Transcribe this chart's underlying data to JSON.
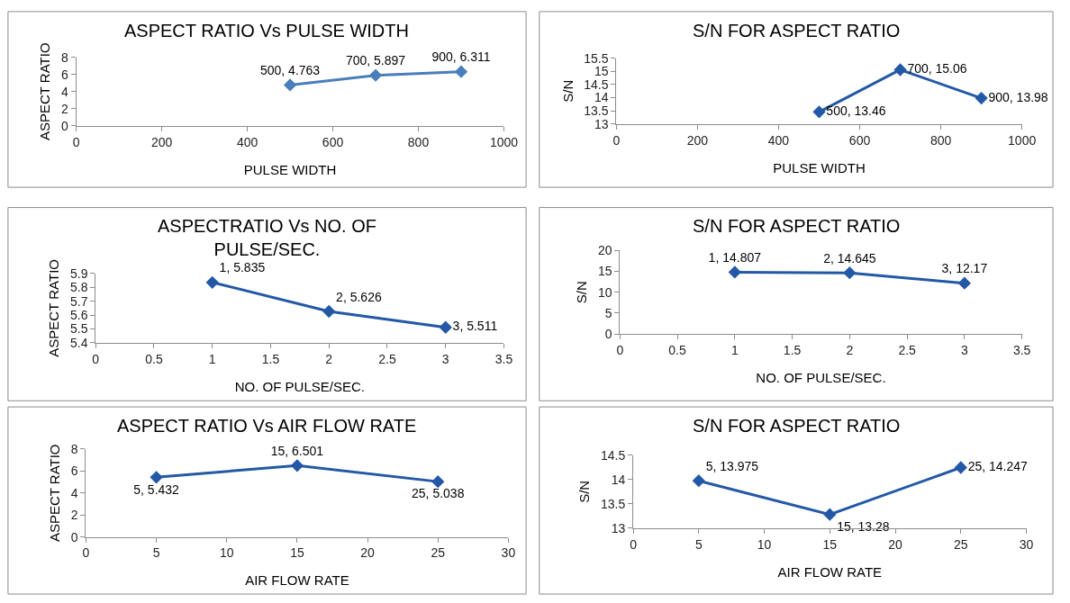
{
  "chart_data": [
    {
      "type": "line",
      "title": "ASPECT RATIO Vs PULSE WIDTH",
      "xlabel": "PULSE WIDTH",
      "ylabel": "ASPECT RATIO",
      "x": [
        500,
        700,
        900
      ],
      "xlim": [
        0,
        1000
      ],
      "xticks": [
        0,
        200,
        400,
        600,
        800,
        1000
      ],
      "ylim": [
        0,
        8
      ],
      "yticks": [
        0,
        2,
        4,
        6,
        8
      ],
      "marker": "diamond",
      "line_style": "solid",
      "series": [
        {
          "color": "#4a7ebb",
          "values": [
            4.763,
            5.897,
            6.311
          ],
          "value_labels": [
            "500, 4.763",
            "700, 5.897",
            "900, 6.311"
          ]
        }
      ]
    },
    {
      "type": "line",
      "title": "S/N FOR ASPECT RATIO",
      "xlabel": "PULSE WIDTH",
      "ylabel": "S/N",
      "x": [
        500,
        700,
        900
      ],
      "xlim": [
        0,
        1000
      ],
      "xticks": [
        0,
        200,
        400,
        600,
        800,
        1000
      ],
      "ylim": [
        13,
        15.5
      ],
      "yticks": [
        13,
        13.5,
        14,
        14.5,
        15,
        15.5
      ],
      "marker": "diamond",
      "line_style": "solid",
      "series": [
        {
          "color": "#2358a6",
          "values": [
            13.46,
            15.06,
            13.98
          ],
          "value_labels": [
            "500, 13.46",
            "700, 15.06",
            "900, 13.98"
          ]
        }
      ]
    },
    {
      "type": "line",
      "title": "ASPECTRATIO Vs NO. OF PULSE/SEC.",
      "xlabel": "NO. OF PULSE/SEC.",
      "ylabel": "ASPECT RATIO",
      "x": [
        1,
        2,
        3
      ],
      "xlim": [
        0,
        3.5
      ],
      "xticks": [
        0,
        0.5,
        1,
        1.5,
        2,
        2.5,
        3,
        3.5
      ],
      "ylim": [
        5.4,
        5.9
      ],
      "yticks": [
        5.4,
        5.5,
        5.6,
        5.7,
        5.8,
        5.9
      ],
      "marker": "diamond",
      "line_style": "solid",
      "series": [
        {
          "color": "#2358a6",
          "values": [
            5.835,
            5.626,
            5.511
          ],
          "value_labels": [
            "1, 5.835",
            "2, 5.626",
            "3, 5.511"
          ]
        }
      ]
    },
    {
      "type": "line",
      "title": "S/N FOR ASPECT RATIO",
      "xlabel": "NO. OF PULSE/SEC.",
      "ylabel": "S/N",
      "x": [
        1,
        2,
        3
      ],
      "xlim": [
        0,
        3.5
      ],
      "xticks": [
        0,
        0.5,
        1,
        1.5,
        2,
        2.5,
        3,
        3.5
      ],
      "ylim": [
        0,
        20
      ],
      "yticks": [
        0,
        5,
        10,
        15,
        20
      ],
      "marker": "diamond",
      "line_style": "solid",
      "series": [
        {
          "color": "#2358a6",
          "values": [
            14.807,
            14.645,
            12.17
          ],
          "value_labels": [
            "1, 14.807",
            "2, 14.645",
            "3, 12.17"
          ]
        }
      ]
    },
    {
      "type": "line",
      "title": "ASPECT RATIO Vs AIR FLOW RATE",
      "xlabel": "AIR FLOW RATE",
      "ylabel": "ASPECT RATIO",
      "x": [
        5,
        15,
        25
      ],
      "xlim": [
        0,
        30
      ],
      "xticks": [
        0,
        5,
        10,
        15,
        20,
        25,
        30
      ],
      "ylim": [
        0,
        8
      ],
      "yticks": [
        0,
        2,
        4,
        6,
        8
      ],
      "marker": "diamond",
      "line_style": "solid",
      "series": [
        {
          "color": "#2358a6",
          "values": [
            5.432,
            6.501,
            5.038
          ],
          "value_labels": [
            "5, 5.432",
            "15, 6.501",
            "25, 5.038"
          ]
        }
      ]
    },
    {
      "type": "line",
      "title": "S/N FOR ASPECT RATIO",
      "xlabel": "AIR FLOW RATE",
      "ylabel": "S/N",
      "x": [
        5,
        15,
        25
      ],
      "xlim": [
        0,
        30
      ],
      "xticks": [
        0,
        5,
        10,
        15,
        20,
        25,
        30
      ],
      "ylim": [
        13,
        14.5
      ],
      "yticks": [
        13,
        13.5,
        14,
        14.5
      ],
      "marker": "diamond",
      "line_style": "solid",
      "series": [
        {
          "color": "#2358a6",
          "values": [
            13.975,
            13.28,
            14.247
          ],
          "value_labels": [
            "5, 13.975",
            "15, 13.28",
            "25, 14.247"
          ]
        }
      ]
    }
  ]
}
